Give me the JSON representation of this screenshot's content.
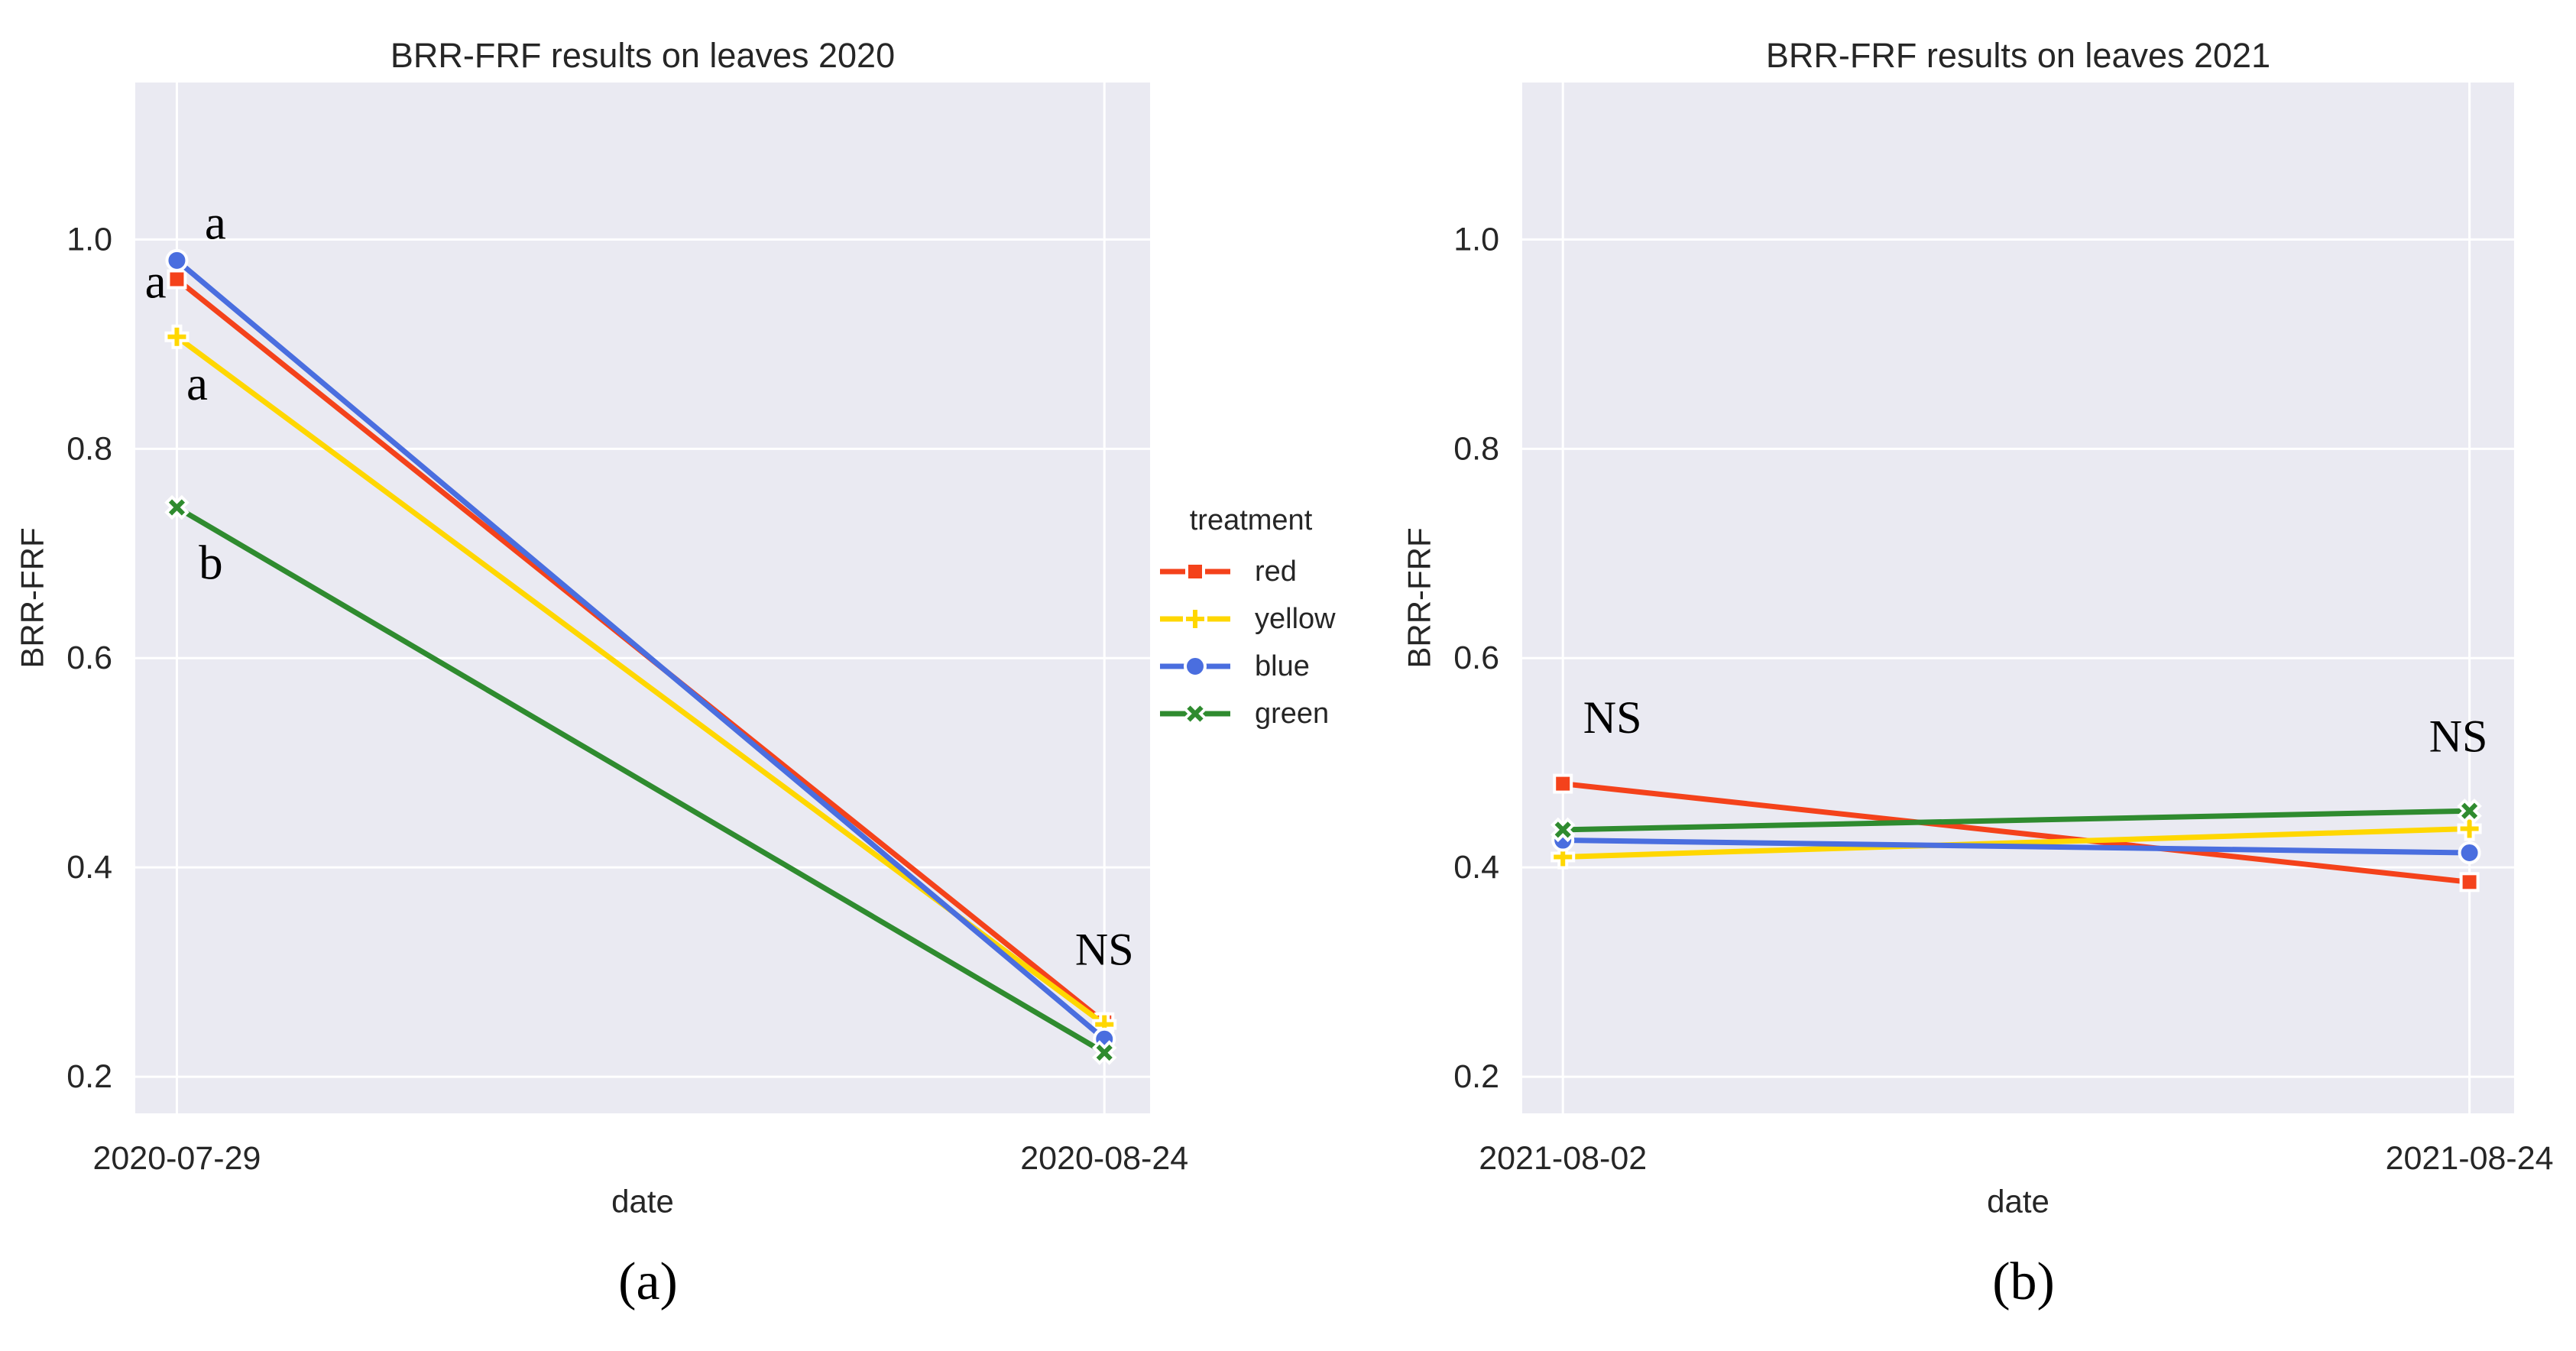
{
  "figure": {
    "background": "#ffffff",
    "plot_background": "#eaeaf2",
    "grid_color": "#ffffff",
    "text_color": "#262626",
    "annotation_color": "#000000"
  },
  "palette": {
    "red": "#f4421b",
    "yellow": "#ffd700",
    "blue": "#4a6edf",
    "green": "#2f8b2f"
  },
  "legend": {
    "title": "treatment",
    "entries": [
      {
        "label": "red",
        "series": "red",
        "marker": "square"
      },
      {
        "label": "yellow",
        "series": "yellow",
        "marker": "plus"
      },
      {
        "label": "blue",
        "series": "blue",
        "marker": "circle"
      },
      {
        "label": "green",
        "series": "green",
        "marker": "x"
      }
    ]
  },
  "captions": {
    "a": "(a)",
    "b": "(b)"
  },
  "chart_data": [
    {
      "type": "line",
      "title": "BRR-FRF results on leaves 2020",
      "xlabel": "date",
      "ylabel": "BRR-FRF",
      "categories": [
        "2020-07-29",
        "2020-08-24"
      ],
      "yticks": [
        {
          "label": "1.0",
          "value": 1.0
        },
        {
          "label": "0.8",
          "value": 0.8
        },
        {
          "label": "0.6",
          "value": 0.6
        },
        {
          "label": "0.4",
          "value": 0.4
        },
        {
          "label": "0.2",
          "value": 0.2
        }
      ],
      "ylim": [
        0.165,
        1.15
      ],
      "grid": true,
      "series": [
        {
          "name": "red",
          "marker": "square",
          "values": [
            0.962,
            0.252
          ]
        },
        {
          "name": "yellow",
          "marker": "plus",
          "values": [
            0.907,
            0.25
          ]
        },
        {
          "name": "blue",
          "marker": "circle",
          "values": [
            0.98,
            0.236
          ]
        },
        {
          "name": "green",
          "marker": "x",
          "values": [
            0.744,
            0.223
          ]
        }
      ],
      "annotations": [
        {
          "text": "a",
          "fx": 0.079,
          "fy": 0.136
        },
        {
          "text": "a",
          "fx": 0.02,
          "fy": 0.193
        },
        {
          "text": "a",
          "fx": 0.061,
          "fy": 0.292
        },
        {
          "text": "b",
          "fx": 0.0745,
          "fy": 0.466
        },
        {
          "text": "NS",
          "fx": 0.955,
          "fy": 0.841
        }
      ]
    },
    {
      "type": "line",
      "title": "BRR-FRF results on leaves 2021",
      "xlabel": "date",
      "ylabel": "BRR-FRF",
      "categories": [
        "2021-08-02",
        "2021-08-24"
      ],
      "yticks": [
        {
          "label": "1.0",
          "value": 1.0
        },
        {
          "label": "0.8",
          "value": 0.8
        },
        {
          "label": "0.6",
          "value": 0.6
        },
        {
          "label": "0.4",
          "value": 0.4
        },
        {
          "label": "0.2",
          "value": 0.2
        }
      ],
      "ylim": [
        0.165,
        1.15
      ],
      "grid": true,
      "series": [
        {
          "name": "red",
          "marker": "square",
          "values": [
            0.48,
            0.386
          ]
        },
        {
          "name": "yellow",
          "marker": "plus",
          "values": [
            0.41,
            0.437
          ]
        },
        {
          "name": "blue",
          "marker": "circle",
          "values": [
            0.426,
            0.414
          ]
        },
        {
          "name": "green",
          "marker": "x",
          "values": [
            0.436,
            0.454
          ]
        }
      ],
      "annotations": [
        {
          "text": "NS",
          "fx": 0.091,
          "fy": 0.616
        },
        {
          "text": "NS",
          "fx": 0.9438,
          "fy": 0.634
        }
      ]
    }
  ]
}
